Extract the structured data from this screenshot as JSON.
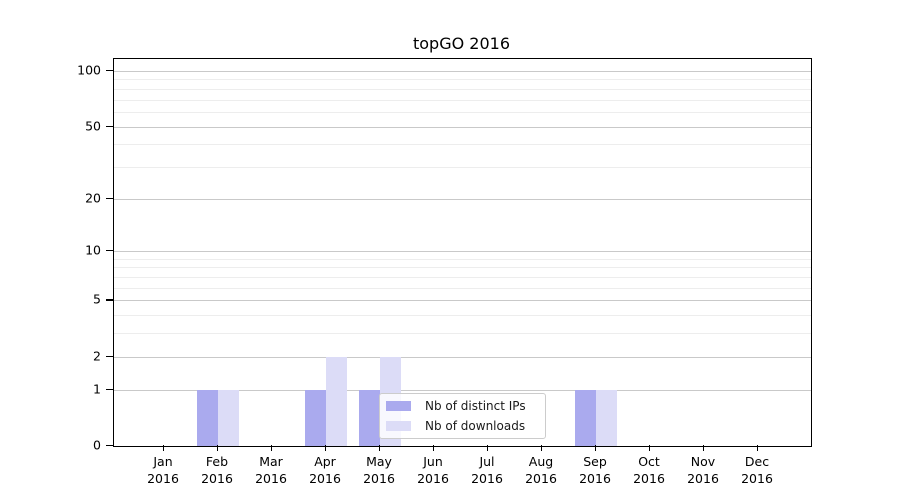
{
  "chart_data": {
    "type": "bar",
    "title": "topGO 2016",
    "categories": [
      "Jan 2016",
      "Feb 2016",
      "Mar 2016",
      "Apr 2016",
      "May 2016",
      "Jun 2016",
      "Jul 2016",
      "Aug 2016",
      "Sep 2016",
      "Oct 2016",
      "Nov 2016",
      "Dec 2016"
    ],
    "x_tick_months": [
      "Jan",
      "Feb",
      "Mar",
      "Apr",
      "May",
      "Jun",
      "Jul",
      "Aug",
      "Sep",
      "Oct",
      "Nov",
      "Dec"
    ],
    "x_tick_year": "2016",
    "series": [
      {
        "name": "Nb of distinct IPs",
        "color": "#aaaaee",
        "values": [
          0,
          1,
          0,
          1,
          1,
          0,
          0,
          0,
          1,
          0,
          0,
          0
        ]
      },
      {
        "name": "Nb of downloads",
        "color": "#dcdcf7",
        "values": [
          0,
          1,
          0,
          2,
          2,
          0,
          0,
          0,
          1,
          0,
          0,
          0
        ]
      }
    ],
    "xlabel": "",
    "ylabel": "",
    "y_scale": "log10(1+x)",
    "ylim": [
      0,
      116
    ],
    "y_ticks": [
      0,
      1,
      2,
      5,
      10,
      20,
      50,
      100
    ],
    "y_minor_gridlines": [
      3,
      4,
      6,
      7,
      8,
      9,
      30,
      40,
      60,
      70,
      80,
      90
    ],
    "grid": true,
    "legend_position": "inside lower right",
    "colors": {
      "grid_major": "#c9c9c9",
      "grid_minor": "#ededed",
      "axis": "#000000",
      "background": "#ffffff"
    }
  }
}
